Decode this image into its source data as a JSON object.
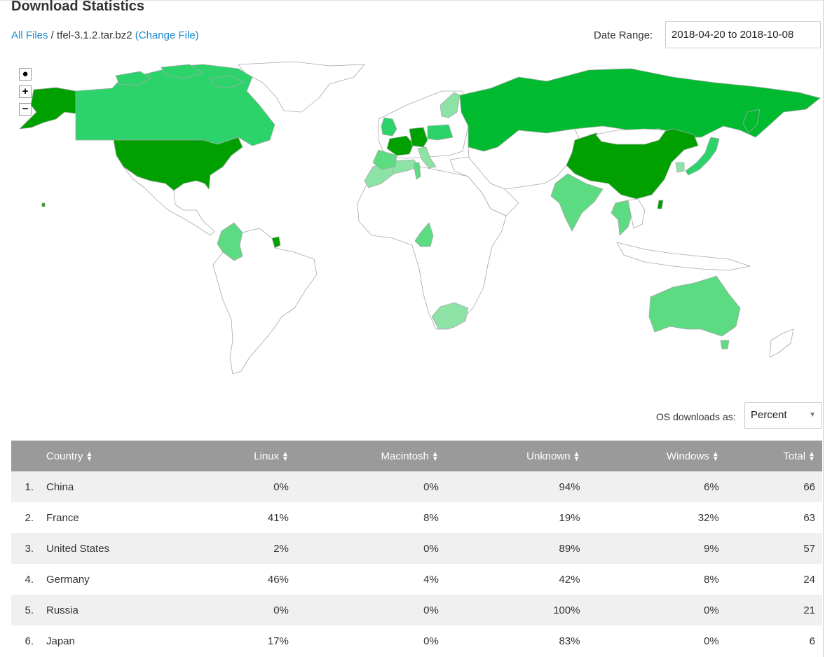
{
  "page": {
    "title": "Download Statistics",
    "breadcrumb": {
      "all_files": "All Files",
      "separator": " / ",
      "file": "tfel-3.1.2.tar.bz2",
      "change_file": "(Change File)"
    },
    "date_range": {
      "label": "Date Range:",
      "value": "2018-04-20 to 2018-10-08"
    }
  },
  "map": {
    "controls": {
      "reset": "●",
      "zoom_in": "+",
      "zoom_out": "−"
    },
    "legend_colors": {
      "very_high": "#00a000",
      "high": "#00bb2f",
      "medium": "#2cd36a",
      "low": "#5cdb82",
      "very_low": "#8de3a5",
      "none": "#ffffff",
      "border": "#a8a8a8"
    }
  },
  "os_downloads": {
    "label": "OS downloads as:",
    "selected": "Percent"
  },
  "table": {
    "columns": [
      "Country",
      "Linux",
      "Macintosh",
      "Unknown",
      "Windows",
      "Total"
    ],
    "rows": [
      {
        "rank": "1.",
        "country": "China",
        "linux": "0%",
        "macintosh": "0%",
        "unknown": "94%",
        "windows": "6%",
        "total": "66"
      },
      {
        "rank": "2.",
        "country": "France",
        "linux": "41%",
        "macintosh": "8%",
        "unknown": "19%",
        "windows": "32%",
        "total": "63"
      },
      {
        "rank": "3.",
        "country": "United States",
        "linux": "2%",
        "macintosh": "0%",
        "unknown": "89%",
        "windows": "9%",
        "total": "57"
      },
      {
        "rank": "4.",
        "country": "Germany",
        "linux": "46%",
        "macintosh": "4%",
        "unknown": "42%",
        "windows": "8%",
        "total": "24"
      },
      {
        "rank": "5.",
        "country": "Russia",
        "linux": "0%",
        "macintosh": "0%",
        "unknown": "100%",
        "windows": "0%",
        "total": "21"
      },
      {
        "rank": "6.",
        "country": "Japan",
        "linux": "17%",
        "macintosh": "0%",
        "unknown": "83%",
        "windows": "0%",
        "total": "6"
      }
    ]
  }
}
